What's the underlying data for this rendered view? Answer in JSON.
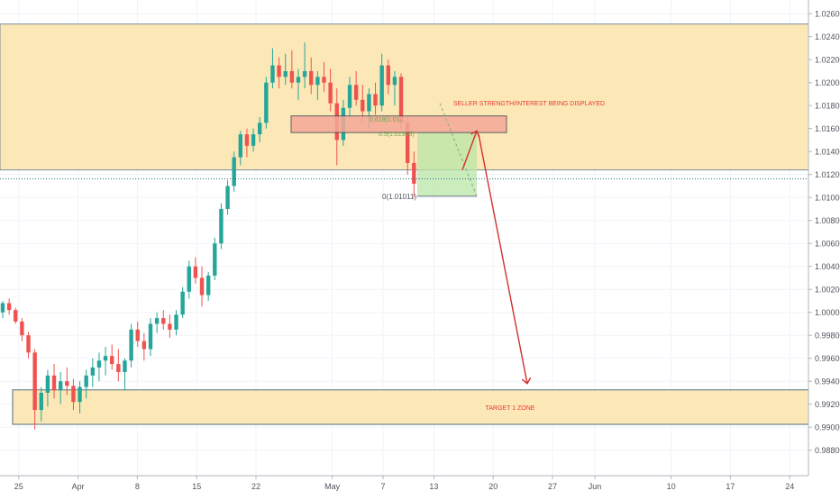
{
  "chart_data": {
    "type": "candlestick",
    "title": "",
    "xlabel": "",
    "ylabel": "",
    "ylim": [
      0.9868,
      1.0268
    ],
    "y_ticks": [
      "1.02600",
      "1.02400",
      "1.02200",
      "1.02000",
      "1.01800",
      "1.01600",
      "1.01400",
      "1.01200",
      "1.01000",
      "1.00800",
      "1.00600",
      "1.00400",
      "1.00200",
      "1.00000",
      "0.99800",
      "0.99600",
      "0.99400",
      "0.99200",
      "0.99000",
      "0.98800"
    ],
    "x_ticks": [
      {
        "label": "25",
        "day": 2
      },
      {
        "label": "Apr",
        "day": 9
      },
      {
        "label": "8",
        "day": 16
      },
      {
        "label": "15",
        "day": 23
      },
      {
        "label": "22",
        "day": 30
      },
      {
        "label": "May",
        "day": 39
      },
      {
        "label": "7",
        "day": 45
      },
      {
        "label": "13",
        "day": 51
      },
      {
        "label": "20",
        "day": 58
      },
      {
        "label": "27",
        "day": 65
      },
      {
        "label": "Jun",
        "day": 70
      },
      {
        "label": "10",
        "day": 79
      },
      {
        "label": "17",
        "day": 86
      },
      {
        "label": "24",
        "day": 93
      }
    ],
    "candles": [
      [
        1.0,
        1.001,
        0.9995,
        1.0008
      ],
      [
        1.0008,
        1.0012,
        0.9998,
        1.0002
      ],
      [
        1.0002,
        1.0004,
        0.999,
        0.9992
      ],
      [
        0.9992,
        0.9995,
        0.9975,
        0.998
      ],
      [
        0.998,
        0.9983,
        0.996,
        0.9965
      ],
      [
        0.9965,
        0.9968,
        0.9898,
        0.9915
      ],
      [
        0.9915,
        0.9935,
        0.9905,
        0.993
      ],
      [
        0.993,
        0.995,
        0.9918,
        0.9945
      ],
      [
        0.9945,
        0.9955,
        0.9925,
        0.9932
      ],
      [
        0.9932,
        0.9948,
        0.992,
        0.994
      ],
      [
        0.994,
        0.9952,
        0.9928,
        0.9936
      ],
      [
        0.9936,
        0.9942,
        0.9915,
        0.9922
      ],
      [
        0.9922,
        0.994,
        0.9912,
        0.9935
      ],
      [
        0.9935,
        0.995,
        0.9925,
        0.9945
      ],
      [
        0.9945,
        0.996,
        0.9935,
        0.9952
      ],
      [
        0.9952,
        0.9965,
        0.994,
        0.9958
      ],
      [
        0.9958,
        0.997,
        0.9945,
        0.9962
      ],
      [
        0.9962,
        0.9972,
        0.995,
        0.9955
      ],
      [
        0.9955,
        0.9968,
        0.994,
        0.9948
      ],
      [
        0.9948,
        0.996,
        0.9932,
        0.9958
      ],
      [
        0.9958,
        0.999,
        0.9952,
        0.9985
      ],
      [
        0.9985,
        0.9992,
        0.997,
        0.9975
      ],
      [
        0.9975,
        0.9982,
        0.9958,
        0.9968
      ],
      [
        0.9968,
        0.9995,
        0.9962,
        0.999
      ],
      [
        0.999,
        1.0,
        0.9982,
        0.9995
      ],
      [
        0.9995,
        1.0002,
        0.9985,
        0.999
      ],
      [
        0.999,
        0.9998,
        0.9978,
        0.9985
      ],
      [
        0.9985,
        1.0002,
        0.998,
        0.9998
      ],
      [
        0.9998,
        1.0022,
        0.9995,
        1.0018
      ],
      [
        1.0018,
        1.0045,
        1.0012,
        1.004
      ],
      [
        1.004,
        1.0048,
        1.0025,
        1.003
      ],
      [
        1.003,
        1.004,
        1.0005,
        1.0015
      ],
      [
        1.0015,
        1.0035,
        1.001,
        1.0032
      ],
      [
        1.0032,
        1.0065,
        1.0028,
        1.006
      ],
      [
        1.006,
        1.0095,
        1.0055,
        1.009
      ],
      [
        1.009,
        1.0115,
        1.0085,
        1.011
      ],
      [
        1.011,
        1.014,
        1.0105,
        1.0135
      ],
      [
        1.0135,
        1.0158,
        1.0128,
        1.0155
      ],
      [
        1.0155,
        1.016,
        1.0135,
        1.0145
      ],
      [
        1.0145,
        1.016,
        1.014,
        1.0155
      ],
      [
        1.0155,
        1.017,
        1.0148,
        1.0165
      ],
      [
        1.0165,
        1.0205,
        1.016,
        1.02
      ],
      [
        1.02,
        1.023,
        1.0195,
        1.0215
      ],
      [
        1.0215,
        1.0222,
        1.0195,
        1.0205
      ],
      [
        1.0205,
        1.0225,
        1.0198,
        1.021
      ],
      [
        1.021,
        1.0228,
        1.0195,
        1.02
      ],
      [
        1.02,
        1.0212,
        1.0185,
        1.0205
      ],
      [
        1.0205,
        1.0235,
        1.0195,
        1.021
      ],
      [
        1.021,
        1.0222,
        1.019,
        1.0198
      ],
      [
        1.0198,
        1.021,
        1.0185,
        1.0205
      ],
      [
        1.0205,
        1.0218,
        1.0192,
        1.02
      ],
      [
        1.02,
        1.0212,
        1.0175,
        1.0182
      ],
      [
        1.0182,
        1.0195,
        1.0128,
        1.015
      ],
      [
        1.015,
        1.0185,
        1.0145,
        1.0178
      ],
      [
        1.0178,
        1.0205,
        1.017,
        1.0198
      ],
      [
        1.0198,
        1.021,
        1.018,
        1.0185
      ],
      [
        1.0185,
        1.0198,
        1.0165,
        1.0175
      ],
      [
        1.0175,
        1.0195,
        1.016,
        1.019
      ],
      [
        1.019,
        1.02,
        1.0172,
        1.018
      ],
      [
        1.018,
        1.0225,
        1.0175,
        1.0215
      ],
      [
        1.0215,
        1.022,
        1.019,
        1.0198
      ],
      [
        1.0198,
        1.021,
        1.018,
        1.0205
      ],
      [
        1.0205,
        1.0208,
        1.016,
        1.0165
      ],
      [
        1.0165,
        1.017,
        1.012,
        1.013
      ],
      [
        1.013,
        1.014,
        1.01,
        1.0112
      ]
    ],
    "annotations": [
      {
        "text": "SELLER STRENGTH/INTEREST BEING DISPLAYED"
      },
      {
        "text": "TARGET 1 ZONE"
      },
      {
        "text": "0.618(1.01..."
      },
      {
        "text": "0.5(1.01335)"
      },
      {
        "text": "0(1.01011)"
      }
    ],
    "zones": [
      {
        "kind": "supply",
        "y_low": 1.0124,
        "y_high": 1.0251
      },
      {
        "kind": "seller",
        "y_low": 1.01565,
        "y_high": 1.0171
      },
      {
        "kind": "target",
        "y_low": 0.99025,
        "y_high": 0.99325
      }
    ],
    "current_price": "1.01162",
    "colors": {
      "up": "#26a69a",
      "down": "#ef5350",
      "zone": "#fbe8b6",
      "seller": "#f4a898",
      "target_arrow": "#d32f2f",
      "price_badge": "#1f6f8b",
      "fib_box": "#b9e6a6"
    }
  }
}
